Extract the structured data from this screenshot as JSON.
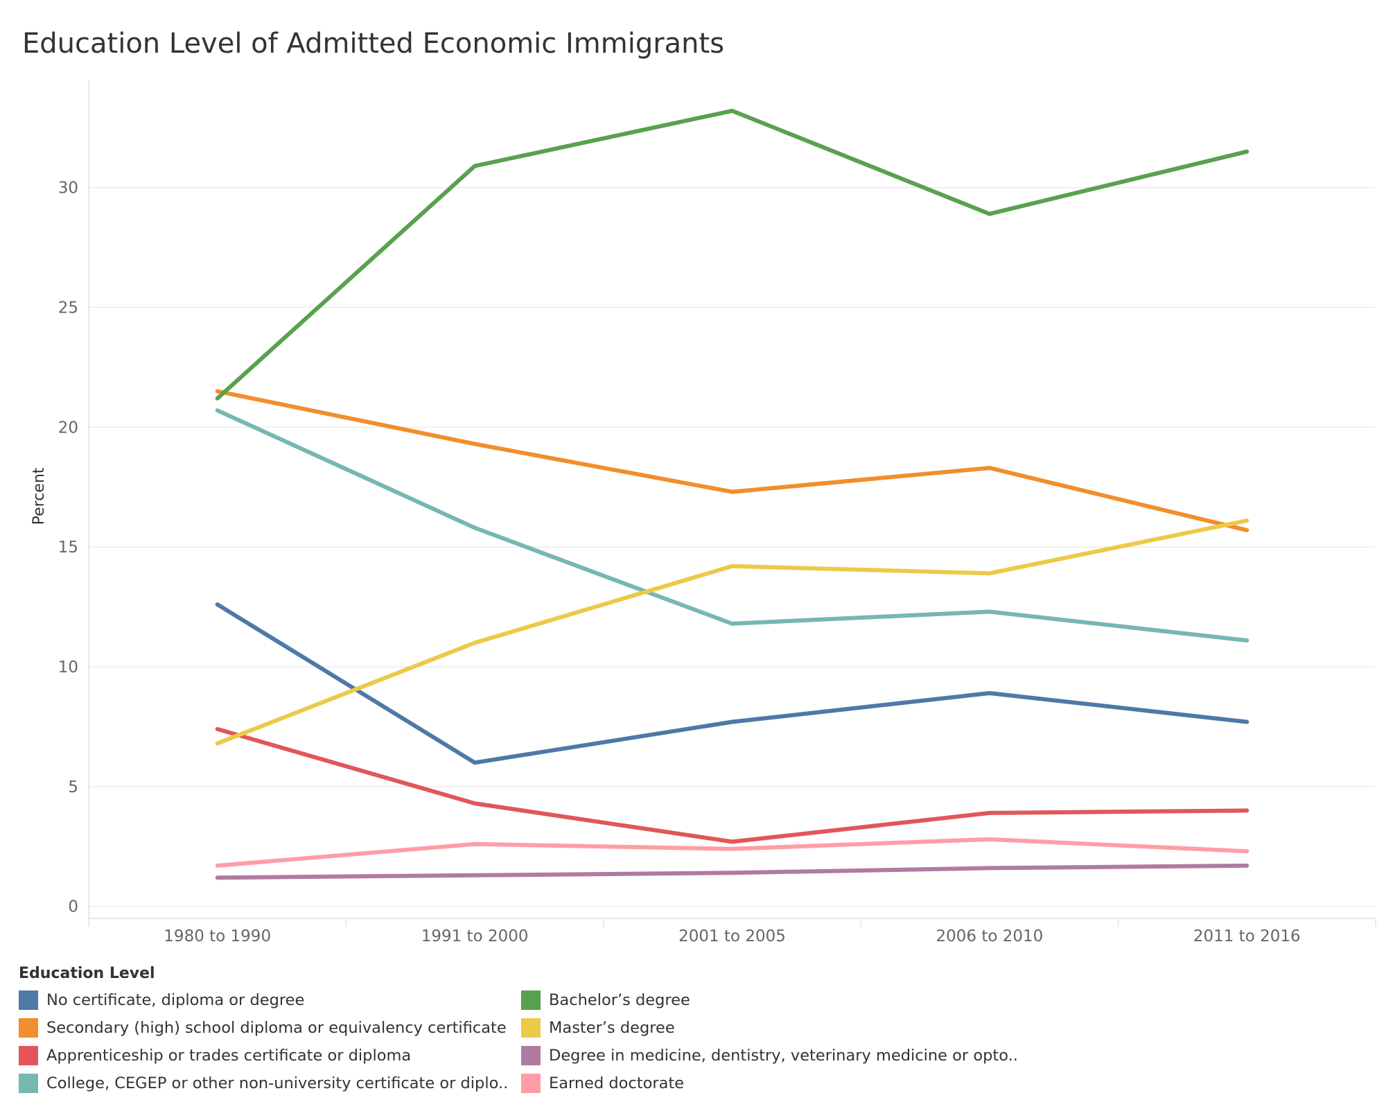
{
  "chart_data": {
    "type": "line",
    "title": "Education Level of Admitted Economic Immigrants",
    "ylabel": "Percent",
    "xlabel": "",
    "categories": [
      "1980 to 1990",
      "1991 to 2000",
      "2001 to 2005",
      "2006 to 2010",
      "2011 to 2016"
    ],
    "ylim": [
      -0.5,
      34.5
    ],
    "yticks": [
      0,
      5,
      10,
      15,
      20,
      25,
      30
    ],
    "grid": true,
    "legend_title": "Education Level",
    "legend_position": "bottom",
    "series": [
      {
        "name": "No certificate, diploma or degree",
        "color": "#4e79a7",
        "values": [
          12.6,
          6.0,
          7.7,
          8.9,
          7.7
        ]
      },
      {
        "name": "Secondary (high) school diploma or equivalency certificate",
        "color": "#f28e2b",
        "values": [
          21.5,
          19.3,
          17.3,
          18.3,
          15.7
        ]
      },
      {
        "name": "Apprenticeship or trades certificate or diploma",
        "color": "#e15759",
        "values": [
          7.4,
          4.3,
          2.7,
          3.9,
          4.0
        ]
      },
      {
        "name": "College, CEGEP or other non-university certificate or diplo..",
        "color": "#76b7b2",
        "values": [
          20.7,
          15.8,
          11.8,
          12.3,
          11.1
        ]
      },
      {
        "name": "Bachelor’s degree",
        "color": "#59a14f",
        "values": [
          21.2,
          30.9,
          33.2,
          28.9,
          31.5
        ]
      },
      {
        "name": "Master’s degree",
        "color": "#edc948",
        "values": [
          6.8,
          11.0,
          14.2,
          13.9,
          16.1
        ]
      },
      {
        "name": "Degree in medicine, dentistry, veterinary medicine or opto..",
        "color": "#b07aa1",
        "values": [
          1.2,
          1.3,
          1.4,
          1.6,
          1.7
        ]
      },
      {
        "name": "Earned doctorate",
        "color": "#ff9da7",
        "values": [
          1.7,
          2.6,
          2.4,
          2.8,
          2.3
        ]
      }
    ]
  }
}
